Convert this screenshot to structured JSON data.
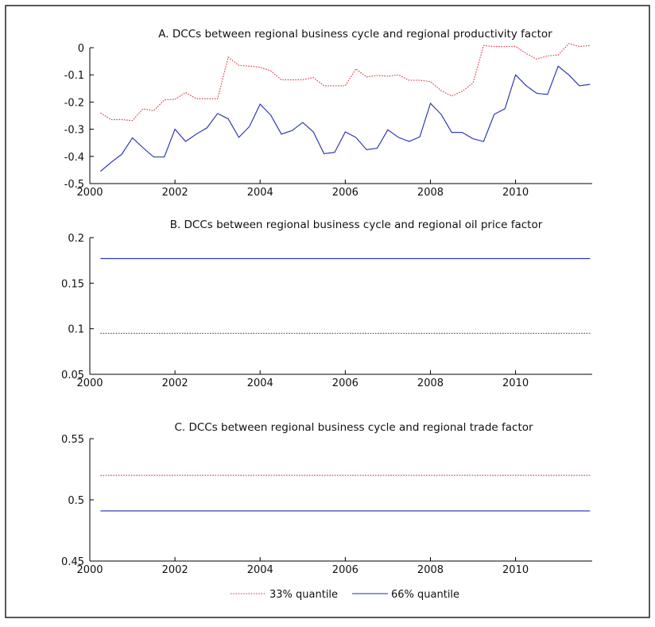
{
  "chart_data": [
    {
      "type": "line",
      "title": "A. DCCs between regional business cycle and regional productivity factor",
      "xlabel": "",
      "ylabel": "",
      "xlim": [
        2000,
        2011.8
      ],
      "ylim": [
        -0.5,
        0
      ],
      "xticks": [
        2000,
        2002,
        2004,
        2006,
        2008,
        2010
      ],
      "xtick_labels": [
        "2000",
        "2002",
        "2004",
        "2006",
        "2008",
        "2010"
      ],
      "yticks": [
        0,
        -0.1,
        -0.2,
        -0.3,
        -0.4,
        -0.5
      ],
      "ytick_labels": [
        "0",
        "-0.1",
        "-0.2",
        "-0.3",
        "-0.4",
        "-0.5"
      ],
      "x": [
        2000.25,
        2000.5,
        2000.75,
        2001.0,
        2001.25,
        2001.5,
        2001.75,
        2002.0,
        2002.25,
        2002.5,
        2002.75,
        2003.0,
        2003.25,
        2003.5,
        2003.75,
        2004.0,
        2004.25,
        2004.5,
        2004.75,
        2005.0,
        2005.25,
        2005.5,
        2005.75,
        2006.0,
        2006.25,
        2006.5,
        2006.75,
        2007.0,
        2007.25,
        2007.5,
        2007.75,
        2008.0,
        2008.25,
        2008.5,
        2008.75,
        2009.0,
        2009.25,
        2009.5,
        2009.75,
        2010.0,
        2010.25,
        2010.5,
        2010.75,
        2011.0,
        2011.25,
        2011.5,
        2011.75
      ],
      "series": [
        {
          "name": "33% quantile",
          "color": "#d9303a",
          "style": "dotted",
          "values": [
            -0.24,
            -0.265,
            -0.265,
            -0.268,
            -0.225,
            -0.232,
            -0.192,
            -0.19,
            -0.165,
            -0.188,
            -0.188,
            -0.188,
            -0.035,
            -0.065,
            -0.068,
            -0.072,
            -0.085,
            -0.118,
            -0.118,
            -0.118,
            -0.11,
            -0.14,
            -0.14,
            -0.14,
            -0.078,
            -0.108,
            -0.102,
            -0.105,
            -0.1,
            -0.12,
            -0.12,
            -0.125,
            -0.158,
            -0.178,
            -0.16,
            -0.13,
            0.008,
            0.004,
            0.004,
            0.005,
            -0.022,
            -0.042,
            -0.03,
            -0.027,
            0.015,
            0.004,
            0.008
          ]
        },
        {
          "name": "66% quantile",
          "color": "#1f2bb5",
          "style": "solid",
          "values": [
            -0.455,
            -0.422,
            -0.392,
            -0.332,
            -0.368,
            -0.402,
            -0.402,
            -0.3,
            -0.345,
            -0.318,
            -0.295,
            -0.242,
            -0.262,
            -0.33,
            -0.29,
            -0.208,
            -0.248,
            -0.318,
            -0.305,
            -0.275,
            -0.31,
            -0.39,
            -0.385,
            -0.31,
            -0.33,
            -0.375,
            -0.37,
            -0.302,
            -0.33,
            -0.345,
            -0.328,
            -0.205,
            -0.245,
            -0.312,
            -0.312,
            -0.335,
            -0.345,
            -0.245,
            -0.225,
            -0.1,
            -0.14,
            -0.168,
            -0.172,
            -0.068,
            -0.1,
            -0.14,
            -0.135
          ]
        }
      ]
    },
    {
      "type": "line",
      "title": "B. DCCs between regional business cycle and regional oil price factor",
      "xlabel": "",
      "ylabel": "",
      "xlim": [
        2000,
        2011.8
      ],
      "ylim": [
        0.05,
        0.2
      ],
      "xticks": [
        2000,
        2002,
        2004,
        2006,
        2008,
        2010
      ],
      "xtick_labels": [
        "2000",
        "2002",
        "2004",
        "2006",
        "2008",
        "2010"
      ],
      "yticks": [
        0.2,
        0.15,
        0.1,
        0.05
      ],
      "ytick_labels": [
        "0.2",
        "0.15",
        "0.1",
        "0.05"
      ],
      "x": [
        2000.25,
        2011.75
      ],
      "series": [
        {
          "name": "33% quantile",
          "color": "#555555",
          "style": "dotted",
          "values": [
            0.095,
            0.095
          ]
        },
        {
          "name": "66% quantile",
          "color": "#1f2bb5",
          "style": "solid",
          "values": [
            0.177,
            0.177
          ]
        }
      ]
    },
    {
      "type": "line",
      "title": "C. DCCs between regional business cycle and regional trade factor",
      "xlabel": "",
      "ylabel": "",
      "xlim": [
        2000,
        2011.8
      ],
      "ylim": [
        0.45,
        0.55
      ],
      "xticks": [
        2000,
        2002,
        2004,
        2006,
        2008,
        2010
      ],
      "xtick_labels": [
        "2000",
        "2002",
        "2004",
        "2006",
        "2008",
        "2010"
      ],
      "yticks": [
        0.55,
        0.5,
        0.45
      ],
      "ytick_labels": [
        "0.55",
        "0.5",
        "0.45"
      ],
      "x": [
        2000.25,
        2011.75
      ],
      "series": [
        {
          "name": "33% quantile",
          "color": "#d9303a",
          "style": "dotted",
          "values": [
            0.52,
            0.52
          ]
        },
        {
          "name": "66% quantile",
          "color": "#1f2bb5",
          "style": "solid",
          "values": [
            0.491,
            0.491
          ]
        }
      ]
    }
  ],
  "legend": {
    "position": "bottom-center",
    "items": [
      {
        "label": "33% quantile",
        "color": "#d9303a",
        "style": "dotted"
      },
      {
        "label": "66% quantile",
        "color": "#1f2bb5",
        "style": "solid"
      }
    ]
  }
}
